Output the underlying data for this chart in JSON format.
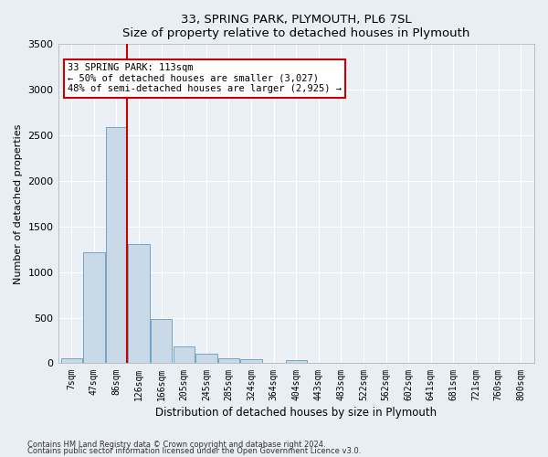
{
  "title1": "33, SPRING PARK, PLYMOUTH, PL6 7SL",
  "title2": "Size of property relative to detached houses in Plymouth",
  "xlabel": "Distribution of detached houses by size in Plymouth",
  "ylabel": "Number of detached properties",
  "bar_labels": [
    "7sqm",
    "47sqm",
    "86sqm",
    "126sqm",
    "166sqm",
    "205sqm",
    "245sqm",
    "285sqm",
    "324sqm",
    "364sqm",
    "404sqm",
    "443sqm",
    "483sqm",
    "522sqm",
    "562sqm",
    "602sqm",
    "641sqm",
    "681sqm",
    "721sqm",
    "760sqm",
    "800sqm"
  ],
  "bar_values": [
    50,
    1220,
    2590,
    1310,
    490,
    180,
    100,
    50,
    40,
    0,
    30,
    0,
    0,
    0,
    0,
    0,
    0,
    0,
    0,
    0,
    0
  ],
  "bar_color": "#c9d9e8",
  "bar_edge_color": "#6699bb",
  "vline_color": "#cc0000",
  "annotation_text": "33 SPRING PARK: 113sqm\n← 50% of detached houses are smaller (3,027)\n48% of semi-detached houses are larger (2,925) →",
  "annotation_box_color": "#ffffff",
  "annotation_box_edge": "#cc0000",
  "ylim": [
    0,
    3500
  ],
  "yticks": [
    0,
    500,
    1000,
    1500,
    2000,
    2500,
    3000,
    3500
  ],
  "footer1": "Contains HM Land Registry data © Crown copyright and database right 2024.",
  "footer2": "Contains public sector information licensed under the Open Government Licence v3.0.",
  "bg_color": "#e8eef4",
  "plot_bg_color": "#eaf0f6"
}
